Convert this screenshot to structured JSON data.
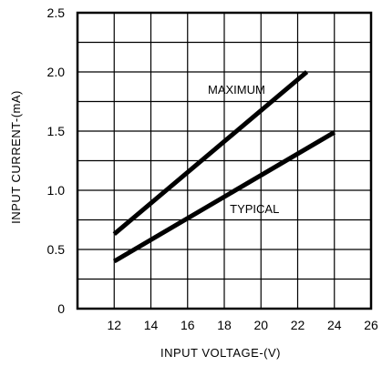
{
  "chart_data": {
    "type": "line",
    "xlabel": "INPUT VOLTAGE-(V)",
    "ylabel": "INPUT CURRENT-(mA)",
    "xlim": [
      10,
      26
    ],
    "ylim": [
      0,
      2.5
    ],
    "x_ticks": [
      12,
      14,
      16,
      18,
      20,
      22,
      24,
      26
    ],
    "x_tick_labels": [
      "12",
      "14",
      "16",
      "18",
      "20",
      "22",
      "24",
      "26"
    ],
    "y_ticks": [
      0,
      0.5,
      1.0,
      1.5,
      2.0,
      2.5
    ],
    "y_tick_labels": [
      "0",
      "0.5",
      "1.0",
      "1.5",
      "2.0",
      "2.5"
    ],
    "grid": true,
    "series": [
      {
        "name": "MAXIMUM",
        "x": [
          12,
          22.5
        ],
        "y": [
          0.63,
          2.0
        ],
        "color": "#000000"
      },
      {
        "name": "TYPICAL",
        "x": [
          12,
          24
        ],
        "y": [
          0.4,
          1.49
        ],
        "color": "#000000"
      }
    ]
  }
}
